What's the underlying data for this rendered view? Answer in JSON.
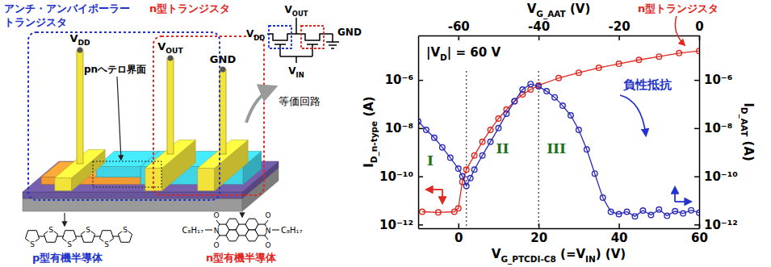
{
  "diagram": {
    "title_aat": [
      "アンチ・アンバイポーラー",
      "トランジスタ"
    ],
    "title_n": "n型トランジスタ",
    "interface_label": "pnヘテロ界面",
    "terminals": {
      "vdd": [
        {
          "text": "V"
        },
        {
          "text": "DD",
          "sub": true
        }
      ],
      "vout": [
        {
          "text": "V"
        },
        {
          "text": "OUT",
          "sub": true
        }
      ],
      "gnd": "GND"
    },
    "p_material": {
      "label": "p型有機半導体",
      "sulfur": [
        "S",
        "S",
        "S",
        "S",
        "S",
        "S"
      ]
    },
    "n_material": {
      "label": "n型有機半導体",
      "nitrogen": [
        "N",
        "N"
      ],
      "oxygen": [
        "O",
        "O",
        "O",
        "O"
      ],
      "side_chains": [
        "C₈H₁₇",
        "C₈H₁₇"
      ]
    },
    "circuit": {
      "label": "等価回路",
      "vdd": [
        {
          "text": "V"
        },
        {
          "text": "DD",
          "sub": true
        }
      ],
      "vout": [
        {
          "text": "V"
        },
        {
          "text": "OUT",
          "sub": true
        }
      ],
      "gnd": "GND",
      "vin": [
        {
          "text": "V"
        },
        {
          "text": "IN",
          "sub": true
        }
      ]
    }
  },
  "chart_data": {
    "type": "line",
    "xlabel": [
      {
        "text": "V"
      },
      {
        "text": "G_PTCDI-C8",
        "sub": true
      },
      {
        "text": " (=V"
      },
      {
        "text": "IN",
        "sub": true
      },
      {
        "text": ") (V)"
      }
    ],
    "x2label": [
      {
        "text": "V"
      },
      {
        "text": "G_AAT",
        "sub": true
      },
      {
        "text": " (V)"
      }
    ],
    "ylabel": [
      {
        "text": "I"
      },
      {
        "text": "D_n-type",
        "sub": true
      },
      {
        "text": " (A)"
      }
    ],
    "y2label": [
      {
        "text": "I"
      },
      {
        "text": "D_AAT",
        "sub": true
      },
      {
        "text": " (A)"
      }
    ],
    "xlim": [
      -10,
      60
    ],
    "xticks": [
      0,
      20,
      40,
      60
    ],
    "x2lim": [
      -70,
      0
    ],
    "x2ticks": [
      -60,
      -40,
      -20,
      0
    ],
    "log": "y",
    "ylim": [
      7e-13,
      7e-05
    ],
    "yticks": [
      {
        "value": 1e-12,
        "label": "10⁻¹²"
      },
      {
        "value": 1e-10,
        "label": "10⁻¹⁰"
      },
      {
        "value": 1e-08,
        "label": "10⁻⁸"
      },
      {
        "value": 1e-06,
        "label": "10⁻⁶"
      }
    ],
    "y2lim": [
      7e-13,
      7e-05
    ],
    "y2ticks": [
      {
        "value": 1e-12,
        "label": "10⁻¹²"
      },
      {
        "value": 1e-10,
        "label": "10⁻¹⁰"
      },
      {
        "value": 1e-08,
        "label": "10⁻⁸"
      },
      {
        "value": 1e-06,
        "label": "10⁻⁶"
      }
    ],
    "series": [
      {
        "name": "n型トランジスタ",
        "color": "#e0261e",
        "marker": "circle",
        "line_style": "solid",
        "x": [
          -9,
          -5,
          -1,
          0,
          1,
          2,
          4,
          6,
          8,
          10,
          12,
          14,
          16,
          18,
          20,
          25,
          30,
          35,
          40,
          45,
          50,
          55,
          60
        ],
        "values": [
          3.4e-12,
          3.2e-12,
          3.4e-12,
          4.7e-12,
          5.9e-11,
          1.9e-10,
          7.4e-10,
          2.7e-09,
          8.5e-09,
          2.5e-08,
          5.9e-08,
          1.3e-07,
          2.5e-07,
          4e-07,
          5.9e-07,
          1.2e-06,
          2e-06,
          3.2e-06,
          4.7e-06,
          6.8e-06,
          9.3e-06,
          1.3e-05,
          1.6e-05
        ]
      },
      {
        "color": "#2a2ab8",
        "marker": "circle",
        "line_style": "solid",
        "axis": "y2",
        "x": [
          -10,
          -8,
          -6,
          -4,
          -2,
          0,
          1,
          2,
          3,
          4,
          6,
          8,
          10,
          12,
          14,
          16,
          18,
          20,
          22,
          24,
          26,
          28,
          30,
          32,
          34,
          36,
          38,
          40,
          42,
          44,
          46,
          48,
          50,
          52,
          54,
          56,
          58,
          60
        ],
        "values": [
          1.9e-08,
          8.5e-09,
          4e-09,
          1.6e-09,
          5.9e-10,
          2.1e-10,
          1e-10,
          4e-11,
          8.5e-11,
          1.9e-10,
          7.4e-10,
          2.7e-09,
          1e-08,
          4e-08,
          1.3e-07,
          4e-07,
          6.8e-07,
          5.4e-07,
          3.4e-07,
          1.9e-07,
          8.5e-08,
          3.4e-08,
          8.5e-09,
          1.3e-09,
          1.3e-10,
          1.3e-11,
          3.4e-12,
          2.7e-12,
          3.4e-12,
          2.2e-12,
          3.8e-12,
          2.5e-12,
          4.2e-12,
          2.3e-12,
          3.6e-12,
          2.9e-12,
          3.9e-12,
          3.1e-12
        ]
      }
    ],
    "annotations": {
      "drain_voltage": [
        {
          "text": "|V"
        },
        {
          "text": "D",
          "sub": true
        },
        {
          "text": "| = 60 V"
        }
      ],
      "regions": [
        "I",
        "II",
        "III"
      ],
      "region_bounds": [
        2,
        20
      ],
      "negative_resistance": "負性抵抗"
    }
  }
}
